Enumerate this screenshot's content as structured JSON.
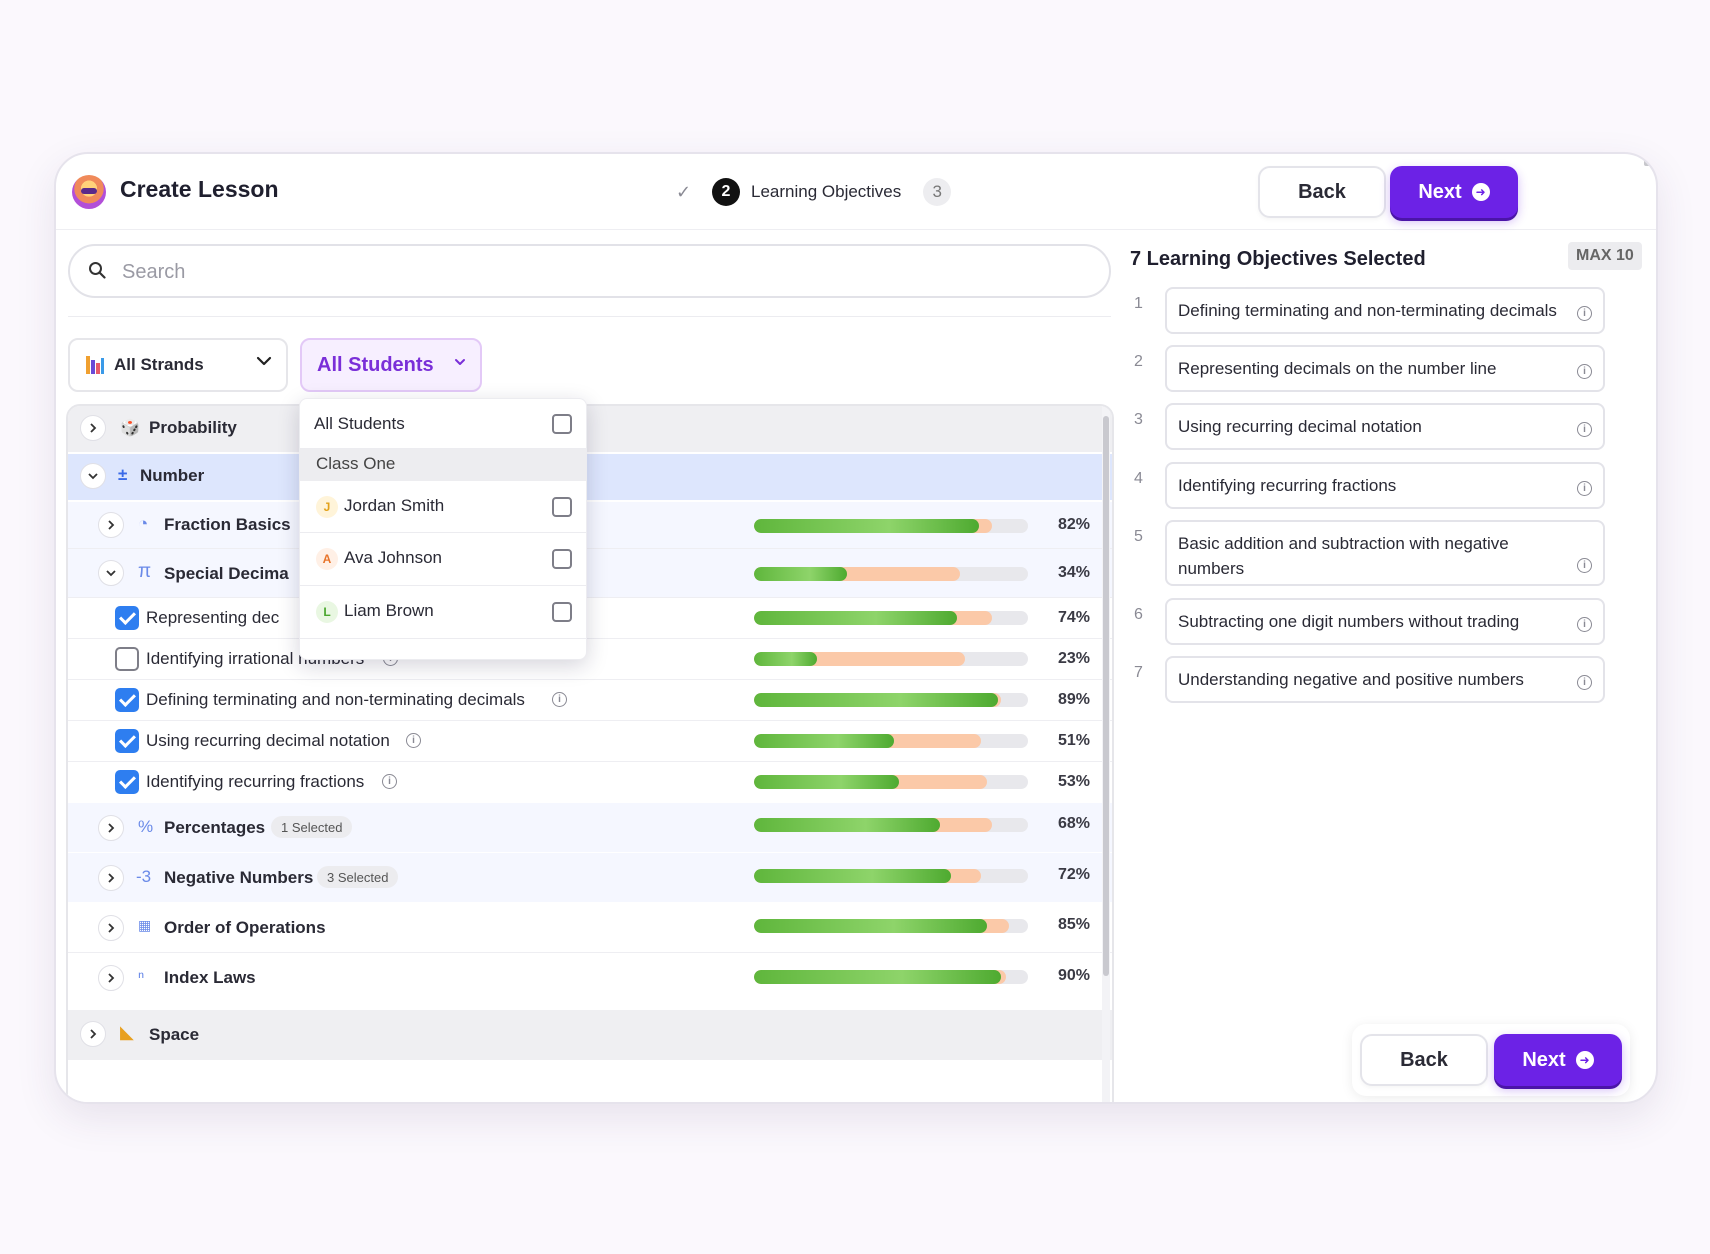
{
  "header": {
    "title": "Create Lesson",
    "stepper": {
      "done_icon": "check-icon",
      "current_num": "2",
      "current_label": "Learning Objectives",
      "next_num": "3"
    },
    "back_label": "Back",
    "next_label": "Next"
  },
  "search": {
    "placeholder": "Search",
    "value": ""
  },
  "filters": {
    "strands": "All Strands",
    "students": "All Students"
  },
  "dropdown": {
    "all_label": "All Students",
    "group_label": "Class One",
    "students": [
      {
        "initial": "J",
        "name": "Jordan Smith",
        "color": "#e3a21a",
        "bg": "#fff4d9"
      },
      {
        "initial": "A",
        "name": "Ava Johnson",
        "color": "#e8742a",
        "bg": "#fff0e6"
      },
      {
        "initial": "L",
        "name": "Liam Brown",
        "color": "#4aa72e",
        "bg": "#e9f7e2"
      }
    ]
  },
  "list": {
    "probability": "Probability",
    "number": "Number",
    "space": "Space",
    "topics": [
      {
        "label": "Fraction Basics",
        "pct": "82%",
        "value": 82,
        "peach": 87,
        "badge": ""
      },
      {
        "label": "Special Decima",
        "pct": "34%",
        "value": 34,
        "peach": 75,
        "badge": ""
      },
      {
        "label": "Percentages",
        "pct": "68%",
        "value": 68,
        "peach": 87,
        "badge": "1 Selected"
      },
      {
        "label": "Negative Numbers",
        "pct": "72%",
        "value": 72,
        "peach": 83,
        "badge": "3 Selected"
      },
      {
        "label": "Order of Operations",
        "pct": "85%",
        "value": 85,
        "peach": 93,
        "badge": ""
      },
      {
        "label": "Index Laws",
        "pct": "90%",
        "value": 90,
        "peach": 92,
        "badge": ""
      }
    ],
    "objectives": [
      {
        "label": "Representing dec",
        "checked": true,
        "pct": "74%",
        "value": 74,
        "peach": 87
      },
      {
        "label": "Identifying irrational numbers",
        "checked": false,
        "pct": "23%",
        "value": 23,
        "peach": 77
      },
      {
        "label": "Defining terminating and non-terminating decimals",
        "checked": true,
        "pct": "89%",
        "value": 89,
        "peach": 90
      },
      {
        "label": "Using recurring decimal notation",
        "checked": true,
        "pct": "51%",
        "value": 51,
        "peach": 83
      },
      {
        "label": "Identifying recurring fractions",
        "checked": true,
        "pct": "53%",
        "value": 53,
        "peach": 85
      }
    ]
  },
  "selected": {
    "title": "7 Learning Objectives Selected",
    "max": "MAX 10",
    "items": [
      {
        "num": "1",
        "label": "Defining terminating and non-terminating decimals"
      },
      {
        "num": "2",
        "label": "Representing decimals on the number line"
      },
      {
        "num": "3",
        "label": "Using recurring decimal notation"
      },
      {
        "num": "4",
        "label": "Identifying recurring fractions"
      },
      {
        "num": "5",
        "label": "Basic addition and subtraction with negative numbers"
      },
      {
        "num": "6",
        "label": "Subtracting one digit numbers without trading"
      },
      {
        "num": "7",
        "label": "Understanding negative and positive numbers"
      }
    ]
  },
  "footer": {
    "back_label": "Back",
    "next_label": "Next"
  }
}
